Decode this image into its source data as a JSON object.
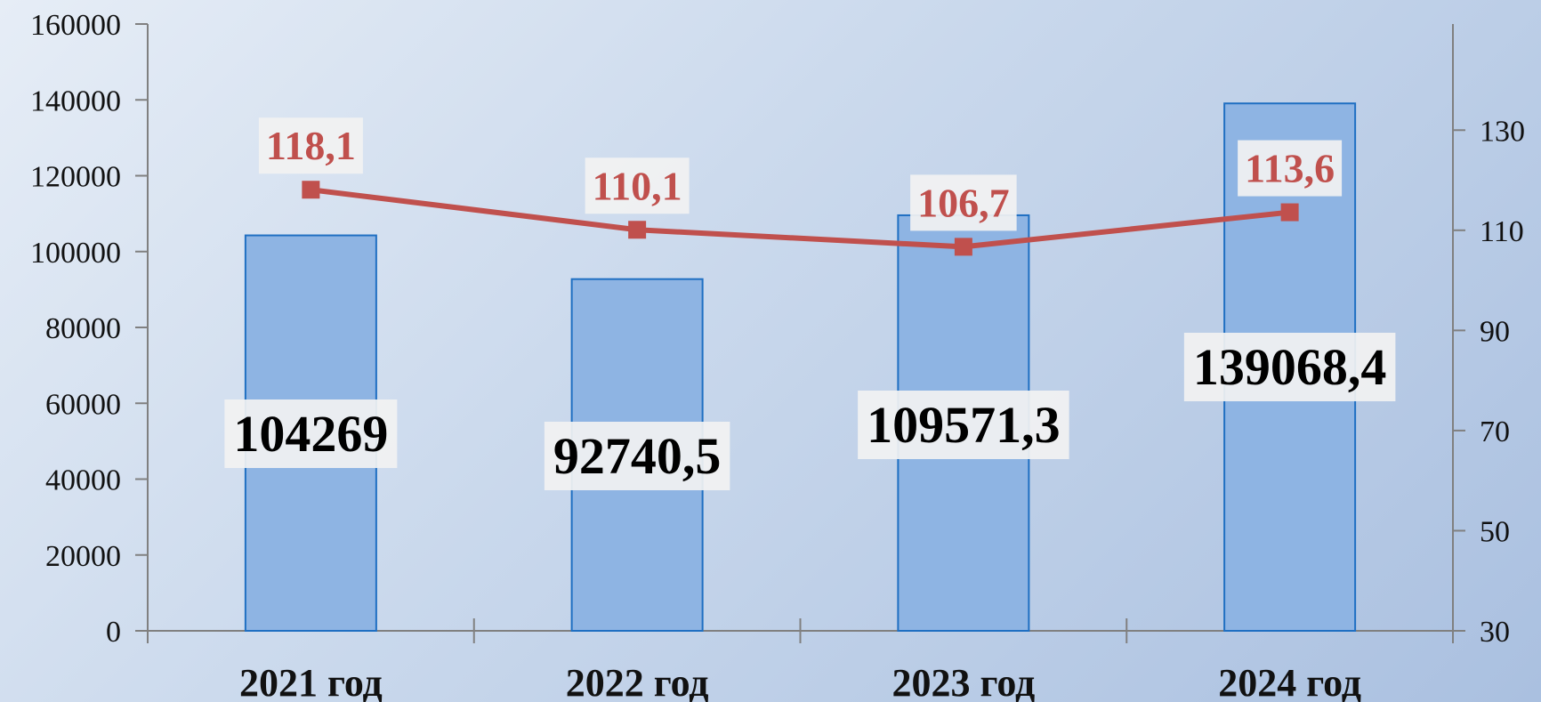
{
  "chart_data": {
    "type": "bar",
    "categories": [
      "2021 год",
      "2022 год",
      "2023 год",
      "2024 год"
    ],
    "series": [
      {
        "type": "bar",
        "axis": "left",
        "values": [
          104269,
          92740.5,
          109571.3,
          139068.4
        ],
        "labels": [
          "104269",
          "92740,5",
          "109571,3",
          "139068,4"
        ],
        "color": "#8eb4e3",
        "stroke": "#1f6fc2"
      },
      {
        "type": "line",
        "axis": "right",
        "values": [
          118.1,
          110.1,
          106.7,
          113.6
        ],
        "labels": [
          "118,1",
          "110,1",
          "106,7",
          "113,6"
        ],
        "color": "#c0504d"
      }
    ],
    "y_left": {
      "min": 0,
      "max": 160000,
      "ticks": [
        "0",
        "20000",
        "40000",
        "60000",
        "80000",
        "100000",
        "120000",
        "140000",
        "160000"
      ]
    },
    "y_right": {
      "min": 30,
      "max": 140,
      "ticks": [
        "30",
        "50",
        "70",
        "90",
        "110",
        "130"
      ]
    },
    "grid": false,
    "legend": "none"
  }
}
